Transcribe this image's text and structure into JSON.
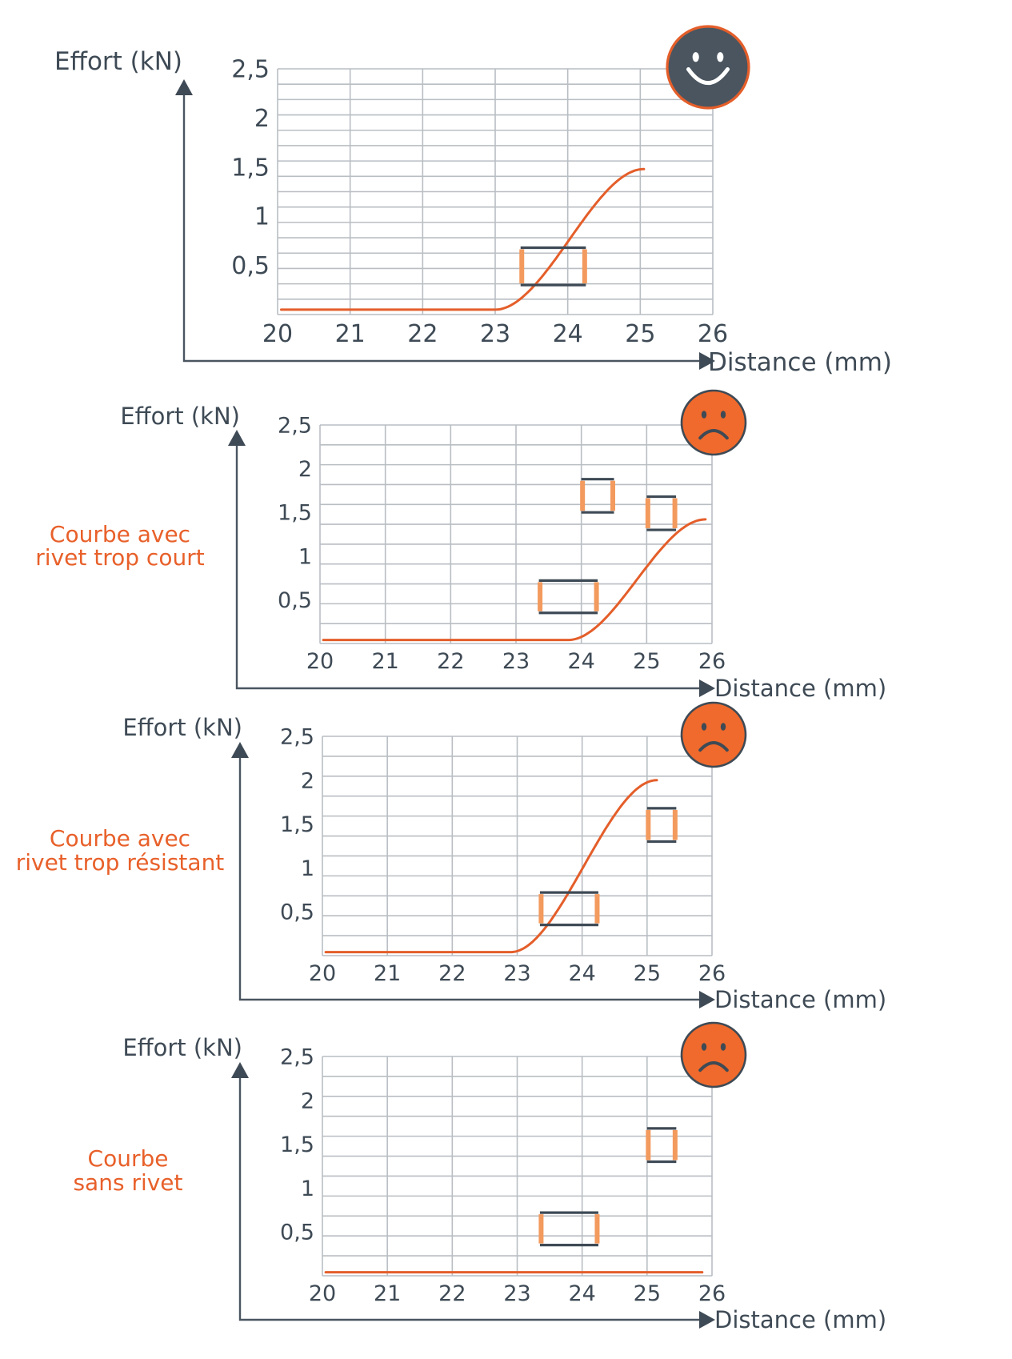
{
  "colors": {
    "curve": "#e45e2a",
    "window_horizontal": "#3e4a55",
    "window_vertical": "#f39a5e",
    "smiley_happy_fill": "#4a5560",
    "smiley_sad_fill": "#ef6a2c",
    "smiley_ring": "#e45e2a"
  },
  "chart_data": [
    {
      "type": "line",
      "ylabel": "Effort (kN)",
      "xlabel": "Distance (mm)",
      "annotation": "",
      "status_icon": "happy-face-icon",
      "x_ticks": [
        "20",
        "21",
        "22",
        "23",
        "24",
        "25",
        "26"
      ],
      "y_ticks": [
        "0,5",
        "1",
        "1,5",
        "2",
        "2,5"
      ],
      "xlim": [
        20,
        26
      ],
      "ylim": [
        0,
        2.5
      ],
      "curve": {
        "x0": 20.05,
        "y_start": 0.05,
        "x_rise": 23,
        "x_end": 25.05,
        "y_end": 1.48
      },
      "windows": [
        {
          "x": [
            23.35,
            24.25
          ],
          "y": [
            0.3,
            0.68
          ]
        }
      ]
    },
    {
      "type": "line",
      "ylabel": "Effort (kN)",
      "xlabel": "Distance (mm)",
      "annotation": "Courbe avec\nrivet trop court",
      "status_icon": "sad-face-icon",
      "x_ticks": [
        "20",
        "21",
        "22",
        "23",
        "24",
        "25",
        "26"
      ],
      "y_ticks": [
        "0,5",
        "1",
        "1,5",
        "2",
        "2,5"
      ],
      "xlim": [
        20,
        26
      ],
      "ylim": [
        0,
        2.5
      ],
      "curve": {
        "x0": 20.05,
        "y_start": 0.04,
        "x_rise": 23.8,
        "x_end": 25.9,
        "y_end": 1.42
      },
      "windows": [
        {
          "x": [
            23.35,
            24.25
          ],
          "y": [
            0.35,
            0.72
          ]
        },
        {
          "x": [
            24,
            24.5
          ],
          "y": [
            1.5,
            1.88
          ]
        },
        {
          "x": [
            25,
            25.45
          ],
          "y": [
            1.3,
            1.68
          ]
        }
      ]
    },
    {
      "type": "line",
      "ylabel": "Effort (kN)",
      "xlabel": "Distance (mm)",
      "annotation": "Courbe avec\nrivet trop résistant",
      "status_icon": "sad-face-icon",
      "x_ticks": [
        "20",
        "21",
        "22",
        "23",
        "24",
        "25",
        "26"
      ],
      "y_ticks": [
        "0,5",
        "1",
        "1,5",
        "2",
        "2,5"
      ],
      "xlim": [
        20,
        26
      ],
      "ylim": [
        0,
        2.5
      ],
      "curve": {
        "x0": 20.05,
        "y_start": 0.04,
        "x_rise": 22.9,
        "x_end": 25.15,
        "y_end": 2.0
      },
      "windows": [
        {
          "x": [
            23.35,
            24.25
          ],
          "y": [
            0.35,
            0.72
          ]
        },
        {
          "x": [
            25,
            25.45
          ],
          "y": [
            1.3,
            1.68
          ]
        }
      ]
    },
    {
      "type": "line",
      "ylabel": "Effort (kN)",
      "xlabel": "Distance (mm)",
      "annotation": "Courbe\nsans rivet",
      "status_icon": "sad-face-icon",
      "x_ticks": [
        "20",
        "21",
        "22",
        "23",
        "24",
        "25",
        "26"
      ],
      "y_ticks": [
        "0,5",
        "1",
        "1,5",
        "2",
        "2,5"
      ],
      "xlim": [
        20,
        26
      ],
      "ylim": [
        0,
        2.5
      ],
      "curve": {
        "x0": 20.05,
        "y_start": 0.04,
        "x_rise": 26,
        "x_end": 25.85,
        "y_end": 0.04
      },
      "windows": [
        {
          "x": [
            23.35,
            24.25
          ],
          "y": [
            0.35,
            0.72
          ]
        },
        {
          "x": [
            25,
            25.45
          ],
          "y": [
            1.3,
            1.68
          ]
        }
      ]
    }
  ]
}
